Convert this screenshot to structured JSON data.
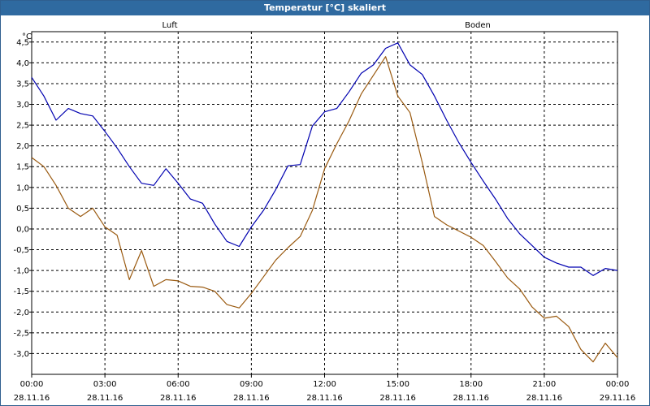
{
  "window": {
    "title": "Temperatur [°C] skaliert"
  },
  "chart_data": {
    "type": "line",
    "title": "Temperatur [°C] skaliert",
    "xlabel": "",
    "ylabel": "°C",
    "unit": "°C",
    "xlim": [
      "28.11.16 00:00",
      "29.11.16 00:00"
    ],
    "ylim": [
      -3.5,
      4.75
    ],
    "x_ticks": [
      {
        "time": "00:00",
        "date": "28.11.16"
      },
      {
        "time": "03:00",
        "date": "28.11.16"
      },
      {
        "time": "06:00",
        "date": "28.11.16"
      },
      {
        "time": "09:00",
        "date": "28.11.16"
      },
      {
        "time": "12:00",
        "date": "28.11.16"
      },
      {
        "time": "15:00",
        "date": "28.11.16"
      },
      {
        "time": "18:00",
        "date": "28.11.16"
      },
      {
        "time": "21:00",
        "date": "28.11.16"
      },
      {
        "time": "00:00",
        "date": "29.11.16"
      }
    ],
    "y_ticks": [
      "4,5",
      "4,0",
      "3,5",
      "3,0",
      "2,5",
      "2,0",
      "1,5",
      "1,0",
      "0,5",
      "0,0",
      "-0,5",
      "-1,0",
      "-1,5",
      "-2,0",
      "-2,5",
      "-3,0"
    ],
    "y_tick_values": [
      4.5,
      4.0,
      3.5,
      3.0,
      2.5,
      2.0,
      1.5,
      1.0,
      0.5,
      0.0,
      -0.5,
      -1.0,
      -1.5,
      -2.0,
      -2.5,
      -3.0
    ],
    "grid": true,
    "x_hours": [
      0,
      0.5,
      1,
      1.5,
      2,
      2.5,
      3,
      3.5,
      4,
      4.5,
      5,
      5.5,
      6,
      6.5,
      7,
      7.5,
      8,
      8.5,
      9,
      9.5,
      10,
      10.5,
      11,
      11.5,
      12,
      12.5,
      13,
      13.5,
      14,
      14.5,
      15,
      15.5,
      16,
      16.5,
      17,
      17.5,
      18,
      18.5,
      19,
      19.5,
      20,
      20.5,
      21,
      21.5,
      22,
      22.5,
      23,
      23.5,
      24
    ],
    "series": [
      {
        "name": "Luft",
        "color": "#0000b0",
        "label_position": "top-left",
        "values": [
          3.65,
          3.2,
          2.62,
          2.9,
          2.78,
          2.72,
          2.35,
          1.95,
          1.5,
          1.1,
          1.05,
          1.45,
          1.1,
          0.72,
          0.62,
          0.12,
          -0.3,
          -0.42,
          0.05,
          0.45,
          0.95,
          1.52,
          1.55,
          2.48,
          2.82,
          2.9,
          3.3,
          3.75,
          3.95,
          4.35,
          4.48,
          3.95,
          3.72,
          3.2,
          2.62,
          2.08,
          1.6,
          1.15,
          0.72,
          0.25,
          -0.12,
          -0.4,
          -0.68,
          -0.82,
          -0.92,
          -0.92,
          -1.12,
          -0.95,
          -1.0
        ]
      },
      {
        "name": "Boden",
        "color": "#9a5a10",
        "label_position": "top-right",
        "values": [
          1.72,
          1.5,
          1.05,
          0.5,
          0.3,
          0.5,
          0.05,
          -0.15,
          -1.22,
          -0.52,
          -1.38,
          -1.22,
          -1.25,
          -1.38,
          -1.4,
          -1.5,
          -1.82,
          -1.9,
          -1.55,
          -1.15,
          -0.75,
          -0.45,
          -0.18,
          0.45,
          1.45,
          2.05,
          2.6,
          3.25,
          3.7,
          4.15,
          3.2,
          2.8,
          1.6,
          0.3,
          0.1,
          -0.05,
          -0.2,
          -0.4,
          -0.78,
          -1.18,
          -1.45,
          -1.88,
          -2.15,
          -2.1,
          -2.35,
          -2.9,
          -3.2,
          -2.75,
          -3.1
        ]
      }
    ]
  }
}
